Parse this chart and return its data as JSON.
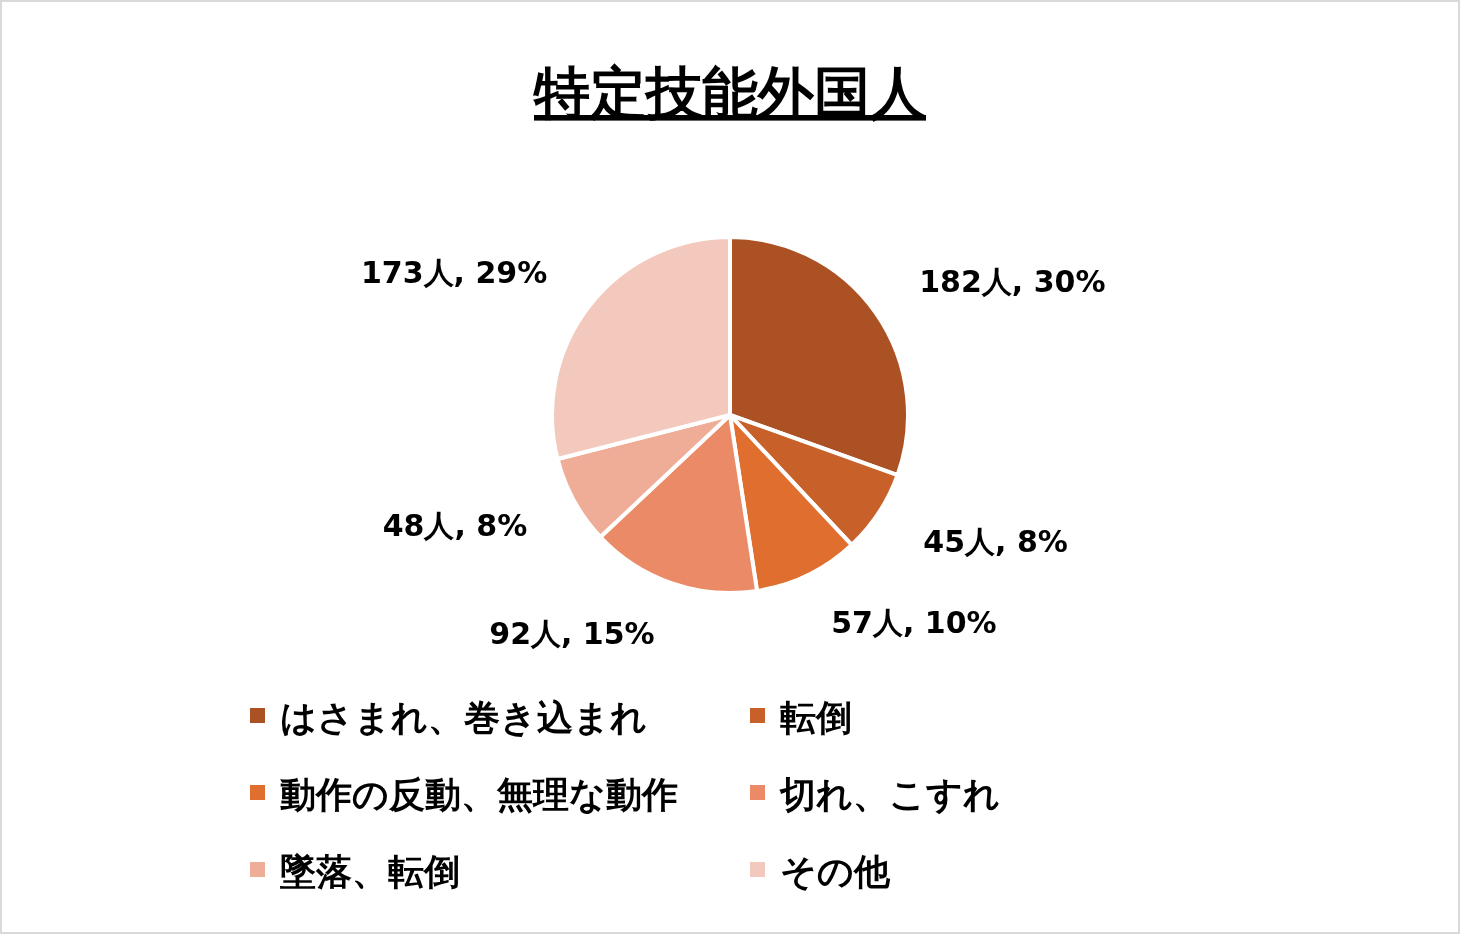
{
  "chart_data": {
    "type": "pie",
    "title": "特定技能外国人",
    "categories": [
      "はさまれ、巻き込まれ",
      "転倒",
      "動作の反動、無理な動作",
      "切れ、こすれ",
      "墜落、転倒",
      "その他"
    ],
    "values": [
      182,
      45,
      57,
      92,
      48,
      173
    ],
    "colors": [
      "#ab5123",
      "#c8602a",
      "#e06f2f",
      "#eb8a66",
      "#efad98",
      "#f3c9bd"
    ],
    "value_labels": [
      "182人, 30%",
      "45人, 8%",
      "57人, 10%",
      "92人, 15%",
      "48人, 8%",
      "173人, 29%"
    ],
    "legend": "bottom"
  }
}
